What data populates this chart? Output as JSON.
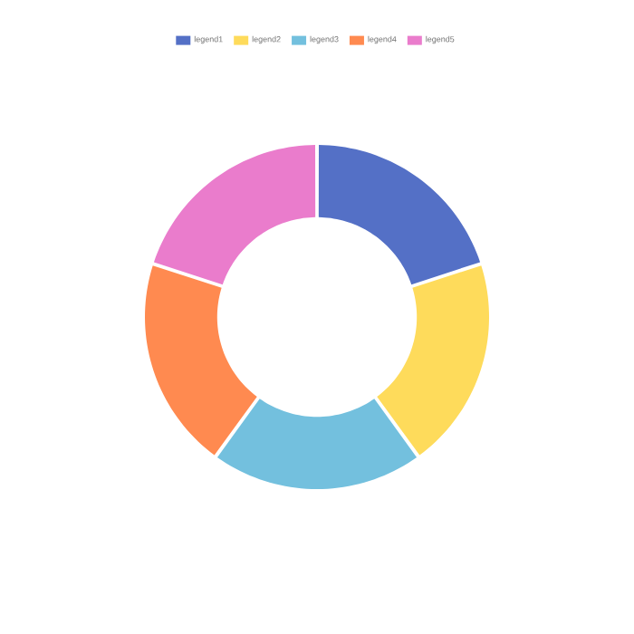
{
  "chart_data": {
    "type": "donut",
    "categories": [
      "legend1",
      "legend2",
      "legend3",
      "legend4",
      "legend5"
    ],
    "values": [
      20,
      20,
      20,
      20,
      20
    ],
    "colors": [
      "#5470c6",
      "#fedb5b",
      "#73c0de",
      "#ff8a50",
      "#ea7ccc"
    ],
    "legend": "top"
  }
}
